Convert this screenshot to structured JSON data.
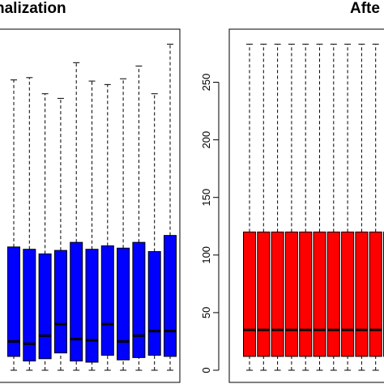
{
  "chart_data": [
    {
      "type": "boxplot",
      "title": "nalization",
      "fill_color": "#0000ff",
      "ylim": [
        0,
        290
      ],
      "yticks": [],
      "boxes": [
        {
          "min": 0,
          "q1": 12,
          "median": 25,
          "q3": 107,
          "max": 252
        },
        {
          "min": 0,
          "q1": 8,
          "median": 23,
          "q3": 105,
          "max": 254
        },
        {
          "min": 0,
          "q1": 10,
          "median": 30,
          "q3": 101,
          "max": 240
        },
        {
          "min": 0,
          "q1": 15,
          "median": 40,
          "q3": 104,
          "max": 236
        },
        {
          "min": 0,
          "q1": 8,
          "median": 27,
          "q3": 111,
          "max": 267
        },
        {
          "min": 0,
          "q1": 7,
          "median": 26,
          "q3": 105,
          "max": 251
        },
        {
          "min": 0,
          "q1": 13,
          "median": 40,
          "q3": 108,
          "max": 248
        },
        {
          "min": 0,
          "q1": 9,
          "median": 25,
          "q3": 106,
          "max": 253
        },
        {
          "min": 0,
          "q1": 11,
          "median": 30,
          "q3": 111,
          "max": 264
        },
        {
          "min": 0,
          "q1": 13,
          "median": 34,
          "q3": 103,
          "max": 240
        },
        {
          "min": 0,
          "q1": 12,
          "median": 34,
          "q3": 117,
          "max": 283
        }
      ]
    },
    {
      "type": "boxplot",
      "title": "Afte",
      "fill_color": "#ff0000",
      "ylim": [
        0,
        290
      ],
      "yticks": [
        0,
        50,
        100,
        150,
        200,
        250
      ],
      "boxes": [
        {
          "min": 0,
          "q1": 12,
          "median": 35,
          "q3": 120,
          "max": 283
        },
        {
          "min": 0,
          "q1": 12,
          "median": 35,
          "q3": 120,
          "max": 283
        },
        {
          "min": 0,
          "q1": 12,
          "median": 35,
          "q3": 120,
          "max": 283
        },
        {
          "min": 0,
          "q1": 12,
          "median": 35,
          "q3": 120,
          "max": 283
        },
        {
          "min": 0,
          "q1": 12,
          "median": 35,
          "q3": 120,
          "max": 283
        },
        {
          "min": 0,
          "q1": 12,
          "median": 35,
          "q3": 120,
          "max": 283
        },
        {
          "min": 0,
          "q1": 12,
          "median": 35,
          "q3": 120,
          "max": 283
        },
        {
          "min": 0,
          "q1": 12,
          "median": 35,
          "q3": 120,
          "max": 283
        },
        {
          "min": 0,
          "q1": 12,
          "median": 35,
          "q3": 120,
          "max": 283
        },
        {
          "min": 0,
          "q1": 12,
          "median": 35,
          "q3": 120,
          "max": 283
        },
        {
          "min": 0,
          "q1": 12,
          "median": 35,
          "q3": 120,
          "max": 283
        }
      ]
    }
  ]
}
